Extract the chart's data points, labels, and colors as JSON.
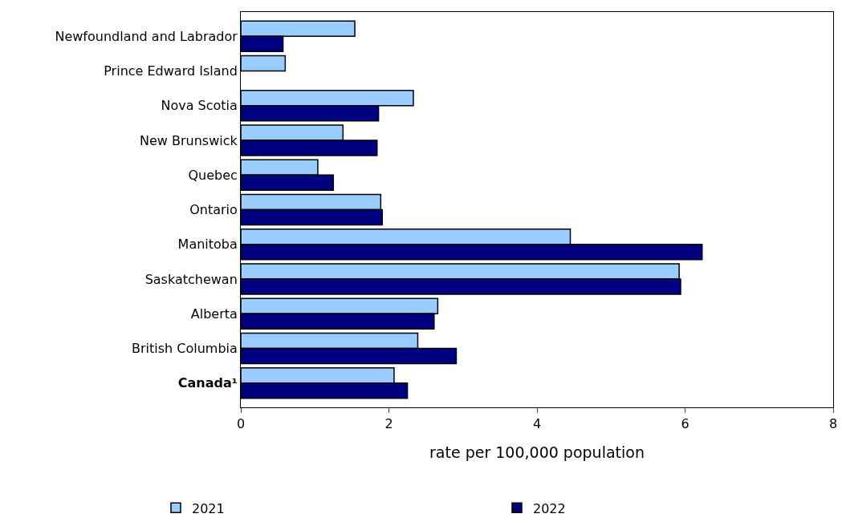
{
  "chart_data": {
    "type": "bar",
    "orientation": "horizontal",
    "xlabel": "rate per 100,000 population",
    "categories": [
      "Newfoundland and Labrador",
      "Prince Edward Island",
      "Nova Scotia",
      "New Brunswick",
      "Quebec",
      "Ontario",
      "Manitoba",
      "Saskatchewan",
      "Alberta",
      "British Columbia",
      "Canada¹"
    ],
    "series": [
      {
        "name": "2021",
        "color": "#99ccff",
        "values": [
          1.54,
          0.6,
          2.33,
          1.38,
          1.04,
          1.89,
          4.45,
          5.92,
          2.66,
          2.39,
          2.07
        ]
      },
      {
        "name": "2022",
        "color": "#000080",
        "values": [
          0.57,
          null,
          1.86,
          1.84,
          1.25,
          1.91,
          6.23,
          5.94,
          2.61,
          2.91,
          2.25
        ]
      }
    ],
    "xlim": [
      0,
      8
    ],
    "xticks": [
      0,
      2,
      4,
      6,
      8
    ],
    "legend": "bottom"
  }
}
